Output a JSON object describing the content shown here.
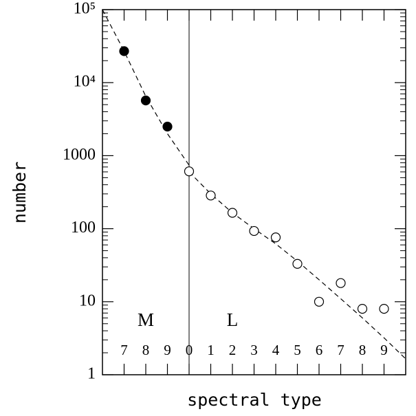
{
  "chart_data": {
    "type": "scatter",
    "xlabel": "spectral type",
    "ylabel": "number",
    "xlim": [
      6,
      20
    ],
    "ylim": [
      1,
      100000
    ],
    "log_y": true,
    "xticks": [
      7,
      8,
      9,
      {
        "value": 10,
        "label": "0"
      },
      {
        "value": 11,
        "label": "1"
      },
      {
        "value": 12,
        "label": "2"
      },
      {
        "value": 13,
        "label": "3"
      },
      {
        "value": 14,
        "label": "4"
      },
      {
        "value": 15,
        "label": "5"
      },
      {
        "value": 16,
        "label": "6"
      },
      {
        "value": 17,
        "label": "7"
      },
      {
        "value": 18,
        "label": "8"
      },
      {
        "value": 19,
        "label": "9"
      }
    ],
    "yticks": [
      1,
      10,
      100,
      1000,
      {
        "value": 10000,
        "label": "10⁴"
      },
      {
        "value": 100000,
        "label": "10⁵"
      }
    ],
    "vline": 10,
    "annotations": [
      {
        "text": "M",
        "x": 8
      },
      {
        "text": "L",
        "x": 12
      }
    ],
    "series": [
      {
        "marker": "filled",
        "color": "#000000",
        "x": [
          7,
          8,
          9
        ],
        "values": [
          27000,
          5700,
          2500
        ]
      },
      {
        "marker": "open",
        "color": "#000000",
        "x": [
          10,
          11,
          12,
          13,
          14,
          15,
          16,
          17,
          18,
          19
        ],
        "values": [
          610,
          285,
          165,
          93,
          76,
          33,
          10,
          18,
          8,
          8
        ]
      }
    ],
    "fits": [
      {
        "x": [
          6,
          7,
          8,
          9,
          10
        ],
        "values": [
          100000,
          27000,
          6500,
          2000,
          740
        ]
      },
      {
        "x": [
          10,
          11,
          12,
          13,
          14,
          15,
          16,
          17,
          18,
          19,
          20
        ],
        "values": [
          600,
          300,
          165,
          100,
          62,
          36,
          20,
          11,
          6,
          3.2,
          1.65
        ]
      }
    ]
  }
}
